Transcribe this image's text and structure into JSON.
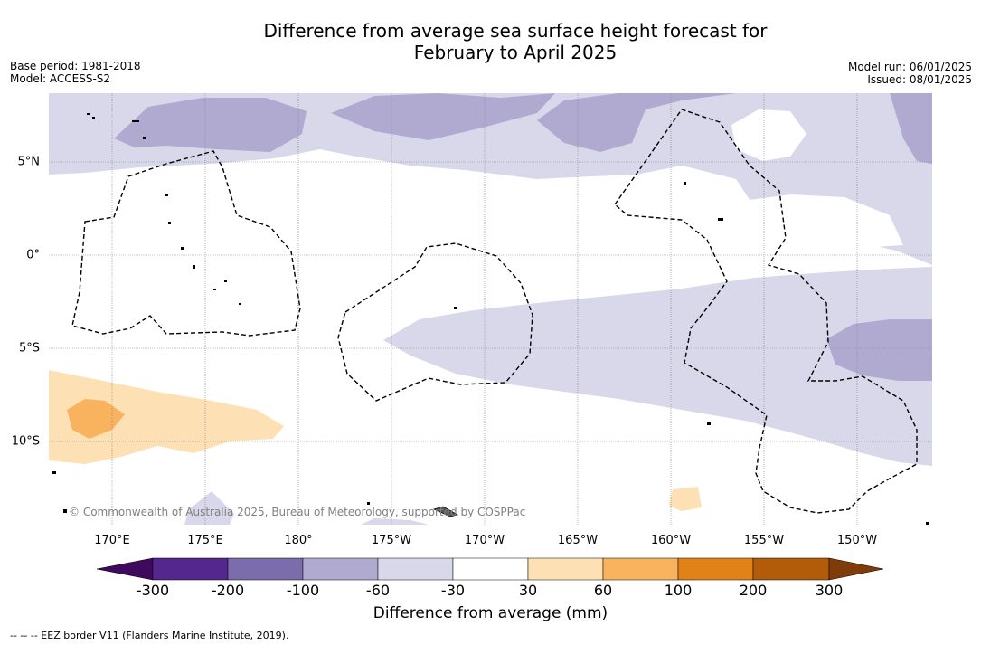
{
  "title_line1": "Difference from average sea surface height forecast for",
  "title_line2": "February to April 2025",
  "meta": {
    "base_period": "Base period: 1981-2018",
    "model": "Model: ACCESS-S2",
    "model_run": "Model run: 06/01/2025",
    "issued": "Issued: 08/01/2025"
  },
  "axes": {
    "lon_labels": [
      "170°E",
      "175°E",
      "180°",
      "175°W",
      "170°W",
      "165°W",
      "160°W",
      "155°W",
      "150°W"
    ],
    "lat_labels": [
      "5°N",
      "0°",
      "5°S",
      "10°S"
    ]
  },
  "copyright": "© Commonwealth of Australia 2025, Bureau of Meteorology, supported by COSPPac",
  "colorbar": {
    "label": "Difference from average (mm)",
    "ticks": [
      "-300",
      "-200",
      "-100",
      "-60",
      "-30",
      "30",
      "60",
      "100",
      "200",
      "300"
    ],
    "colors": [
      "#3f0a5e",
      "#54278f",
      "#7b6cab",
      "#b0aad1",
      "#d8d8ea",
      "#ffffff",
      "#fde0b4",
      "#f9b35f",
      "#e08218",
      "#b25c0a",
      "#7f3b08"
    ]
  },
  "legend_note": "--  --  -- EEZ border V11 (Flanders Marine Institute, 2019)."
}
